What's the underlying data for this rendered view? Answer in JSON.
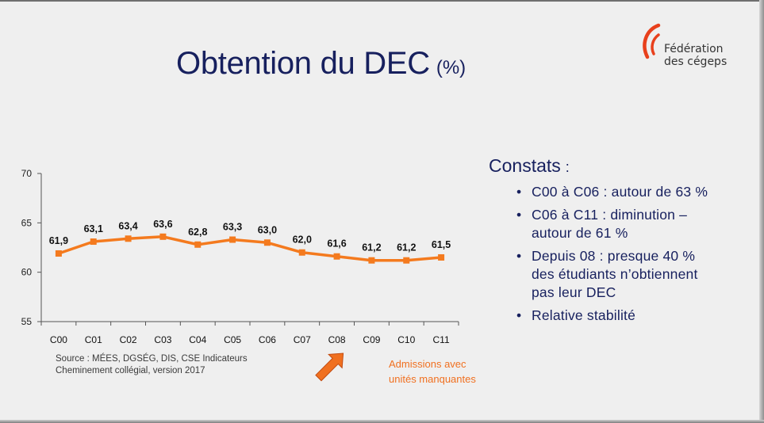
{
  "slide": {
    "title": "Obtention du DEC",
    "title_unit": "(%)"
  },
  "logo": {
    "line1": "Fédération",
    "line2": "des cégeps",
    "color": "#e8401c"
  },
  "constats": {
    "heading": "Constats",
    "heading_colon": ":",
    "bullets": [
      {
        "line1": "C00 à C06 : autour de 63 %"
      },
      {
        "line1": "C06 à C11 : diminution –",
        "line2": "autour de 61 %"
      },
      {
        "line1": "Depuis 08 : presque 40 %",
        "line2": "des étudiants n’obtiennent",
        "line3": "pas leur DEC"
      },
      {
        "line1": "Relative stabilité"
      }
    ]
  },
  "source": {
    "line1": "Source : MÉES, DGSÉG, DIS, CSE Indicateurs",
    "line2": "Cheminement collégial, version 2017"
  },
  "annotation": {
    "line1": "Admissions avec",
    "line2": "unités manquantes",
    "arrow_target_category": "C08",
    "color": "#f07020"
  },
  "chart_data": {
    "type": "line",
    "categories": [
      "C00",
      "C01",
      "C02",
      "C03",
      "C04",
      "C05",
      "C06",
      "C07",
      "C08",
      "C09",
      "C10",
      "C11"
    ],
    "values": [
      61.9,
      63.1,
      63.4,
      63.6,
      62.8,
      63.3,
      63.0,
      62.0,
      61.6,
      61.2,
      61.2,
      61.5
    ],
    "data_labels": [
      "61,9",
      "63,1",
      "63,4",
      "63,6",
      "62,8",
      "63,3",
      "63,0",
      "62,0",
      "61,6",
      "61,2",
      "61,2",
      "61,5"
    ],
    "yticks": [
      55,
      60,
      65,
      70
    ],
    "ytick_labels": [
      "55",
      "60",
      "65",
      "70"
    ],
    "ylim": [
      55,
      70
    ],
    "title": "",
    "xlabel": "",
    "ylabel": "",
    "grid": false,
    "line_color": "#f47a1e",
    "marker": "square"
  }
}
